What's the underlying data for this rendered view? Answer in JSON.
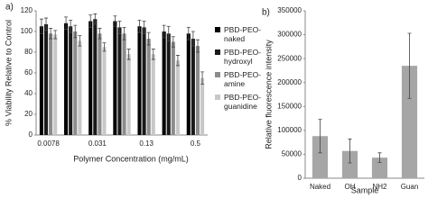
{
  "chart_data": [
    {
      "type": "bar",
      "panel_label": "a)",
      "y_label": "% Viability Relative to Control",
      "x_label": "Polymer Concentration (mg/mL)",
      "categories": [
        "0.0078",
        null,
        "0.031",
        null,
        "0.13",
        null,
        "0.5"
      ],
      "ylim": [
        0,
        120
      ],
      "yticks": [
        0,
        20,
        40,
        60,
        80,
        100,
        120
      ],
      "legend": "right",
      "series": [
        {
          "name": "PBD-PEO-naked",
          "color": "#000000",
          "values": [
            105,
            108,
            110,
            110,
            105,
            100,
            98
          ],
          "errors": [
            7,
            6,
            6,
            5,
            6,
            6,
            6
          ]
        },
        {
          "name": "PBD-PEO-hydroxyl",
          "color": "#1a1a1a",
          "values": [
            107,
            105,
            112,
            104,
            104,
            98,
            93
          ],
          "errors": [
            6,
            6,
            5,
            6,
            6,
            7,
            7
          ]
        },
        {
          "name": "PBD-PEO-amine",
          "color": "#8c8c8c",
          "values": [
            98,
            100,
            98,
            98,
            93,
            90,
            86
          ],
          "errors": [
            5,
            6,
            5,
            6,
            6,
            5,
            6
          ]
        },
        {
          "name": "PBD-PEO-guanidine",
          "color": "#c8c8c8",
          "values": [
            97,
            91,
            85,
            78,
            78,
            72,
            55
          ],
          "errors": [
            4,
            5,
            4,
            5,
            5,
            5,
            6
          ]
        }
      ]
    },
    {
      "type": "bar",
      "panel_label": "b)",
      "y_label": "Relative fluorescence intensity",
      "x_label": "Sample",
      "categories": [
        "Naked",
        "OH",
        "NH2",
        "Guan"
      ],
      "ylim": [
        0,
        350000
      ],
      "yticks": [
        0,
        50000,
        100000,
        150000,
        200000,
        250000,
        300000,
        350000
      ],
      "series": [
        {
          "name": null,
          "color": "#a6a6a6",
          "values": [
            88000,
            57000,
            43000,
            235000
          ],
          "errors": [
            35000,
            25000,
            10000,
            68000
          ]
        }
      ]
    }
  ]
}
